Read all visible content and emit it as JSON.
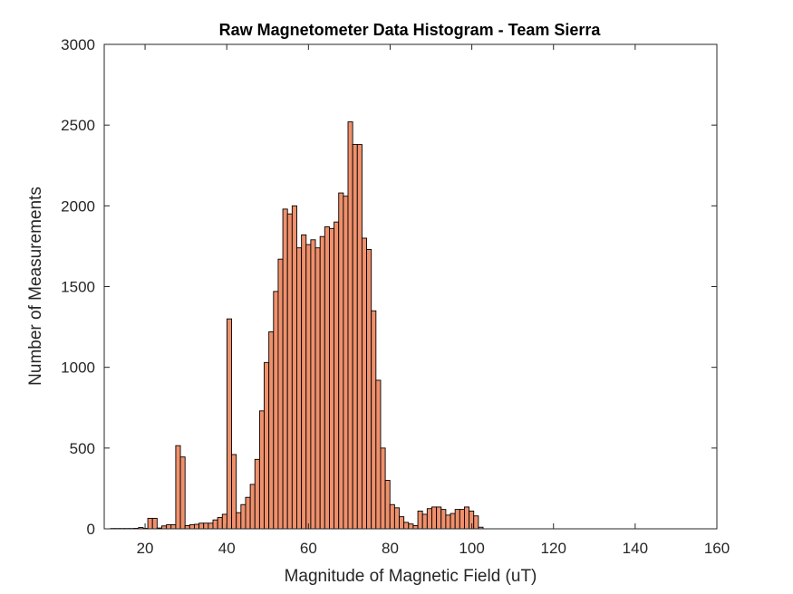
{
  "chart_data": {
    "type": "bar",
    "title": "Raw Magnetometer Data Histogram - Team Sierra",
    "xlabel": "Magnitude of Magnetic Field (uT)",
    "ylabel": "Number of Measurements",
    "xlim": [
      10,
      160
    ],
    "ylim": [
      0,
      3000
    ],
    "xticks": [
      20,
      40,
      60,
      80,
      100,
      120,
      140,
      160
    ],
    "yticks": [
      0,
      500,
      1000,
      1500,
      2000,
      2500,
      3000
    ],
    "grid": false,
    "bar_color": "#ef906c",
    "edge_color": "#000000",
    "bin_width": 1.14,
    "bin_start": 11.55,
    "counts": [
      2,
      2,
      2,
      2,
      2,
      3,
      8,
      3,
      65,
      65,
      5,
      18,
      25,
      25,
      515,
      445,
      20,
      25,
      28,
      35,
      35,
      35,
      55,
      70,
      90,
      1300,
      460,
      100,
      150,
      195,
      275,
      430,
      730,
      1030,
      1220,
      1470,
      1670,
      1980,
      1950,
      2000,
      1740,
      1820,
      1760,
      1790,
      1740,
      1810,
      1870,
      1860,
      1900,
      2080,
      2060,
      2520,
      2380,
      2380,
      1800,
      1730,
      1350,
      920,
      500,
      300,
      150,
      130,
      75,
      40,
      30,
      20,
      110,
      90,
      125,
      135,
      135,
      120,
      85,
      95,
      120,
      120,
      135,
      110,
      80,
      10
    ]
  }
}
